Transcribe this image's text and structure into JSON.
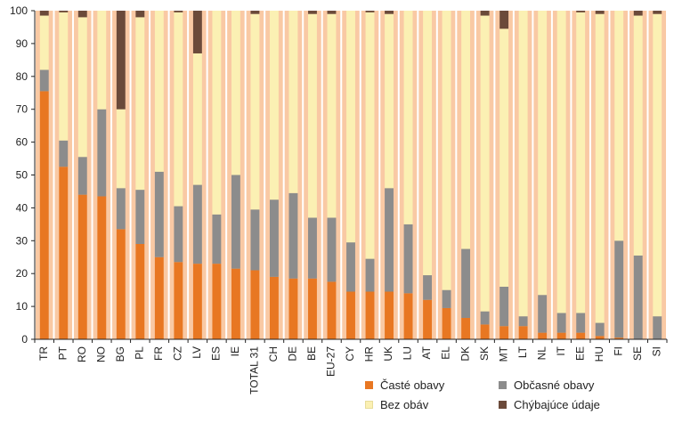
{
  "chart_data": {
    "type": "bar",
    "stacked": true,
    "categories": [
      "TR",
      "PT",
      "RO",
      "NO",
      "BG",
      "PL",
      "FR",
      "CZ",
      "LV",
      "ES",
      "IE",
      "TOTAL 31",
      "CH",
      "DE",
      "BE",
      "EU-27",
      "CY",
      "HR",
      "UK",
      "LU",
      "AT",
      "EL",
      "DK",
      "SK",
      "MT",
      "LT",
      "NL",
      "IT",
      "EE",
      "HU",
      "FI",
      "SE",
      "SI"
    ],
    "series": [
      {
        "name": "Časté obavy",
        "color": "#e87722",
        "values": [
          75.5,
          52.5,
          44,
          43.5,
          33.5,
          29,
          25,
          23.5,
          23,
          23,
          21.5,
          21,
          19,
          18.5,
          18.5,
          17.5,
          14.5,
          14.5,
          14.5,
          14,
          12,
          9.5,
          6.5,
          4.5,
          4,
          4,
          2,
          2,
          2,
          1,
          0.5,
          0,
          0
        ]
      },
      {
        "name": "Občasné obavy",
        "color": "#8c8c8c",
        "values": [
          6.5,
          8,
          11.5,
          26.5,
          12.5,
          16.5,
          26,
          17,
          24,
          15,
          28.5,
          18.5,
          23.5,
          26,
          18.5,
          19.5,
          15,
          10,
          31.5,
          21,
          7.5,
          5.5,
          21,
          4,
          12,
          3,
          11.5,
          6,
          6,
          4,
          29.5,
          25.5,
          7
        ]
      },
      {
        "name": "Bez obáv",
        "color": "#fbf0b3",
        "values": [
          16.5,
          39,
          42.5,
          30,
          24,
          52.5,
          49,
          59,
          40,
          62,
          50,
          59.5,
          57.5,
          55.5,
          62,
          62,
          70.5,
          75,
          53,
          65,
          80.5,
          85,
          72.5,
          90,
          78.5,
          93,
          86.5,
          92,
          91.5,
          94,
          70,
          73,
          92
        ]
      },
      {
        "name": "Chýbajúce údaje",
        "color": "#6b4a3a",
        "values": [
          1.5,
          0.5,
          2,
          0,
          30,
          2,
          0,
          0.5,
          13,
          0,
          0,
          1,
          0,
          0,
          1,
          1,
          0,
          0.5,
          1,
          0,
          0,
          0,
          0,
          1.5,
          5.5,
          0,
          0,
          0,
          0.5,
          1,
          0,
          1.5,
          1
        ]
      }
    ],
    "title": "",
    "xlabel": "",
    "ylabel": "",
    "ylim": [
      0,
      100
    ],
    "yticks": [
      0,
      10,
      20,
      30,
      40,
      50,
      60,
      70,
      80,
      90,
      100
    ],
    "grid": false,
    "legend_position": "bottom-right",
    "column_background": "#f9c9a4"
  },
  "legend": {
    "items": [
      {
        "label": "Časté obavy",
        "color": "#e87722",
        "icon": "square-swatch"
      },
      {
        "label": "Občasné obavy",
        "color": "#8c8c8c",
        "icon": "square-swatch"
      },
      {
        "label": "Bez obáv",
        "color": "#fbf0b3",
        "icon": "square-swatch"
      },
      {
        "label": "Chýbajúce údaje",
        "color": "#6b4a3a",
        "icon": "square-swatch"
      }
    ]
  }
}
